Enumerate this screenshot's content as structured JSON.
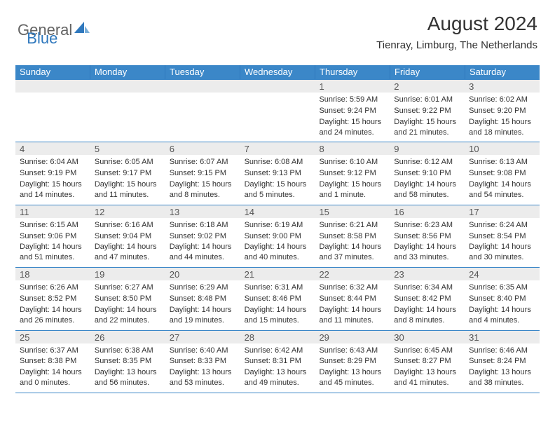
{
  "brand": {
    "part1": "General",
    "part2": "Blue"
  },
  "title": "August 2024",
  "location": "Tienray, Limburg, The Netherlands",
  "colors": {
    "header_bg": "#3b87c8",
    "header_border": "#2f78bd",
    "daynum_bg": "#ececec",
    "text": "#333333",
    "brand_gray": "#646464",
    "brand_blue": "#2f78bd"
  },
  "weekdays": [
    "Sunday",
    "Monday",
    "Tuesday",
    "Wednesday",
    "Thursday",
    "Friday",
    "Saturday"
  ],
  "weeks": [
    [
      {
        "n": "",
        "sr": "",
        "ss": "",
        "dl": ""
      },
      {
        "n": "",
        "sr": "",
        "ss": "",
        "dl": ""
      },
      {
        "n": "",
        "sr": "",
        "ss": "",
        "dl": ""
      },
      {
        "n": "",
        "sr": "",
        "ss": "",
        "dl": ""
      },
      {
        "n": "1",
        "sr": "Sunrise: 5:59 AM",
        "ss": "Sunset: 9:24 PM",
        "dl": "Daylight: 15 hours and 24 minutes."
      },
      {
        "n": "2",
        "sr": "Sunrise: 6:01 AM",
        "ss": "Sunset: 9:22 PM",
        "dl": "Daylight: 15 hours and 21 minutes."
      },
      {
        "n": "3",
        "sr": "Sunrise: 6:02 AM",
        "ss": "Sunset: 9:20 PM",
        "dl": "Daylight: 15 hours and 18 minutes."
      }
    ],
    [
      {
        "n": "4",
        "sr": "Sunrise: 6:04 AM",
        "ss": "Sunset: 9:19 PM",
        "dl": "Daylight: 15 hours and 14 minutes."
      },
      {
        "n": "5",
        "sr": "Sunrise: 6:05 AM",
        "ss": "Sunset: 9:17 PM",
        "dl": "Daylight: 15 hours and 11 minutes."
      },
      {
        "n": "6",
        "sr": "Sunrise: 6:07 AM",
        "ss": "Sunset: 9:15 PM",
        "dl": "Daylight: 15 hours and 8 minutes."
      },
      {
        "n": "7",
        "sr": "Sunrise: 6:08 AM",
        "ss": "Sunset: 9:13 PM",
        "dl": "Daylight: 15 hours and 5 minutes."
      },
      {
        "n": "8",
        "sr": "Sunrise: 6:10 AM",
        "ss": "Sunset: 9:12 PM",
        "dl": "Daylight: 15 hours and 1 minute."
      },
      {
        "n": "9",
        "sr": "Sunrise: 6:12 AM",
        "ss": "Sunset: 9:10 PM",
        "dl": "Daylight: 14 hours and 58 minutes."
      },
      {
        "n": "10",
        "sr": "Sunrise: 6:13 AM",
        "ss": "Sunset: 9:08 PM",
        "dl": "Daylight: 14 hours and 54 minutes."
      }
    ],
    [
      {
        "n": "11",
        "sr": "Sunrise: 6:15 AM",
        "ss": "Sunset: 9:06 PM",
        "dl": "Daylight: 14 hours and 51 minutes."
      },
      {
        "n": "12",
        "sr": "Sunrise: 6:16 AM",
        "ss": "Sunset: 9:04 PM",
        "dl": "Daylight: 14 hours and 47 minutes."
      },
      {
        "n": "13",
        "sr": "Sunrise: 6:18 AM",
        "ss": "Sunset: 9:02 PM",
        "dl": "Daylight: 14 hours and 44 minutes."
      },
      {
        "n": "14",
        "sr": "Sunrise: 6:19 AM",
        "ss": "Sunset: 9:00 PM",
        "dl": "Daylight: 14 hours and 40 minutes."
      },
      {
        "n": "15",
        "sr": "Sunrise: 6:21 AM",
        "ss": "Sunset: 8:58 PM",
        "dl": "Daylight: 14 hours and 37 minutes."
      },
      {
        "n": "16",
        "sr": "Sunrise: 6:23 AM",
        "ss": "Sunset: 8:56 PM",
        "dl": "Daylight: 14 hours and 33 minutes."
      },
      {
        "n": "17",
        "sr": "Sunrise: 6:24 AM",
        "ss": "Sunset: 8:54 PM",
        "dl": "Daylight: 14 hours and 30 minutes."
      }
    ],
    [
      {
        "n": "18",
        "sr": "Sunrise: 6:26 AM",
        "ss": "Sunset: 8:52 PM",
        "dl": "Daylight: 14 hours and 26 minutes."
      },
      {
        "n": "19",
        "sr": "Sunrise: 6:27 AM",
        "ss": "Sunset: 8:50 PM",
        "dl": "Daylight: 14 hours and 22 minutes."
      },
      {
        "n": "20",
        "sr": "Sunrise: 6:29 AM",
        "ss": "Sunset: 8:48 PM",
        "dl": "Daylight: 14 hours and 19 minutes."
      },
      {
        "n": "21",
        "sr": "Sunrise: 6:31 AM",
        "ss": "Sunset: 8:46 PM",
        "dl": "Daylight: 14 hours and 15 minutes."
      },
      {
        "n": "22",
        "sr": "Sunrise: 6:32 AM",
        "ss": "Sunset: 8:44 PM",
        "dl": "Daylight: 14 hours and 11 minutes."
      },
      {
        "n": "23",
        "sr": "Sunrise: 6:34 AM",
        "ss": "Sunset: 8:42 PM",
        "dl": "Daylight: 14 hours and 8 minutes."
      },
      {
        "n": "24",
        "sr": "Sunrise: 6:35 AM",
        "ss": "Sunset: 8:40 PM",
        "dl": "Daylight: 14 hours and 4 minutes."
      }
    ],
    [
      {
        "n": "25",
        "sr": "Sunrise: 6:37 AM",
        "ss": "Sunset: 8:38 PM",
        "dl": "Daylight: 14 hours and 0 minutes."
      },
      {
        "n": "26",
        "sr": "Sunrise: 6:38 AM",
        "ss": "Sunset: 8:35 PM",
        "dl": "Daylight: 13 hours and 56 minutes."
      },
      {
        "n": "27",
        "sr": "Sunrise: 6:40 AM",
        "ss": "Sunset: 8:33 PM",
        "dl": "Daylight: 13 hours and 53 minutes."
      },
      {
        "n": "28",
        "sr": "Sunrise: 6:42 AM",
        "ss": "Sunset: 8:31 PM",
        "dl": "Daylight: 13 hours and 49 minutes."
      },
      {
        "n": "29",
        "sr": "Sunrise: 6:43 AM",
        "ss": "Sunset: 8:29 PM",
        "dl": "Daylight: 13 hours and 45 minutes."
      },
      {
        "n": "30",
        "sr": "Sunrise: 6:45 AM",
        "ss": "Sunset: 8:27 PM",
        "dl": "Daylight: 13 hours and 41 minutes."
      },
      {
        "n": "31",
        "sr": "Sunrise: 6:46 AM",
        "ss": "Sunset: 8:24 PM",
        "dl": "Daylight: 13 hours and 38 minutes."
      }
    ]
  ]
}
